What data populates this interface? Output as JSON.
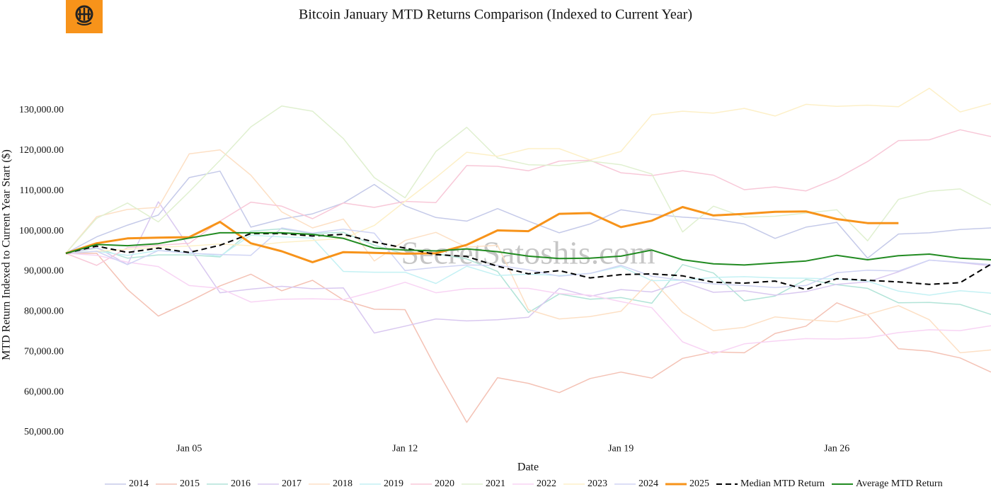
{
  "chart_data": {
    "type": "line",
    "title": "Bitcoin January MTD Returns Comparison (Indexed to Current Year)",
    "watermark": "SecretSatoshis.com",
    "x_label": "Date",
    "y_label": "MTD Return Indexed to Current Year Start ($)",
    "x": [
      1,
      2,
      3,
      4,
      5,
      6,
      7,
      8,
      9,
      10,
      11,
      12,
      13,
      14,
      15,
      16,
      17,
      18,
      19,
      20,
      21,
      22,
      23,
      24,
      25,
      26,
      27,
      28,
      29,
      30,
      31
    ],
    "xlim": [
      1,
      31
    ],
    "xticks": [
      {
        "value": 5,
        "label": "Jan 05"
      },
      {
        "value": 12,
        "label": "Jan 12"
      },
      {
        "value": 19,
        "label": "Jan 19"
      },
      {
        "value": 26,
        "label": "Jan 26"
      }
    ],
    "ylim": [
      48500,
      141000
    ],
    "yticks": [
      {
        "value": 50000,
        "label": "50,000.00"
      },
      {
        "value": 60000,
        "label": "60,000.00"
      },
      {
        "value": 70000,
        "label": "70,000.00"
      },
      {
        "value": 80000,
        "label": "80,000.00"
      },
      {
        "value": 90000,
        "label": "90,000.00"
      },
      {
        "value": 100000,
        "label": "100,000.00"
      },
      {
        "value": 110000,
        "label": "110,000.00"
      },
      {
        "value": 120000,
        "label": "120,000.00"
      },
      {
        "value": 130000,
        "label": "130,000.00"
      }
    ],
    "grid": false,
    "legend": "bottom",
    "series": [
      {
        "name": "2014",
        "color": "#c5cae9",
        "line_width": 1.5,
        "values": [
          94500,
          98600,
          101500,
          104000,
          113300,
          114900,
          101000,
          103000,
          104300,
          107000,
          111600,
          106300,
          103400,
          102500,
          105600,
          102500,
          99600,
          101800,
          105300,
          104200,
          103500,
          103000,
          101800,
          98200,
          101000,
          102200,
          93300,
          99300,
          99600,
          100400,
          100800
        ]
      },
      {
        "name": "2015",
        "color": "#f4c2b5",
        "line_width": 1.5,
        "values": [
          94500,
          94500,
          85500,
          78900,
          82500,
          86400,
          89300,
          85200,
          87800,
          82900,
          80600,
          80500,
          66000,
          52500,
          63600,
          62200,
          59900,
          63400,
          65000,
          63500,
          68400,
          70000,
          69800,
          74600,
          76400,
          82200,
          79200,
          70800,
          70200,
          68500,
          65000
        ]
      },
      {
        "name": "2016",
        "color": "#b2e4d8",
        "line_width": 1.5,
        "values": [
          94500,
          95800,
          93300,
          94100,
          94100,
          93600,
          100000,
          100600,
          99400,
          99700,
          96500,
          94300,
          94400,
          93100,
          90000,
          79800,
          84400,
          83100,
          83500,
          82100,
          91700,
          89600,
          82700,
          83900,
          88000,
          86700,
          85800,
          82200,
          82300,
          81800,
          79300
        ]
      },
      {
        "name": "2017",
        "color": "#d9c8f0",
        "line_width": 1.5,
        "values": [
          94500,
          96000,
          91700,
          107300,
          96000,
          84700,
          85600,
          86300,
          85700,
          85900,
          74700,
          76400,
          78200,
          77700,
          78000,
          78600,
          85800,
          83800,
          85500,
          84900,
          87400,
          84800,
          85200,
          84100,
          85000,
          86800,
          87400,
          89900,
          92800,
          92200,
          91400
        ]
      },
      {
        "name": "2018",
        "color": "#fde0c5",
        "line_width": 1.5,
        "values": [
          94500,
          103600,
          105400,
          105900,
          119200,
          120200,
          113900,
          104800,
          100800,
          103000,
          92600,
          97700,
          99700,
          96000,
          96500,
          80500,
          78200,
          78800,
          80100,
          88000,
          79800,
          75300,
          76100,
          78700,
          78000,
          77500,
          79300,
          81500,
          78000,
          69800,
          70500
        ]
      },
      {
        "name": "2019",
        "color": "#c4f1f4",
        "line_width": 1.5,
        "values": [
          94500,
          95000,
          94000,
          95200,
          94700,
          93800,
          99000,
          98600,
          98300,
          90000,
          89800,
          89800,
          87000,
          91300,
          89000,
          89300,
          89000,
          89500,
          91200,
          87700,
          87800,
          88500,
          88700,
          88400,
          88300,
          88100,
          87600,
          85100,
          84100,
          85200,
          84600
        ]
      },
      {
        "name": "2020",
        "color": "#f8c8d8",
        "line_width": 1.5,
        "values": [
          94500,
          91500,
          95900,
          96500,
          97000,
          102500,
          107200,
          106200,
          103100,
          107000,
          105900,
          107400,
          107100,
          116300,
          116100,
          115000,
          117400,
          117600,
          114500,
          113800,
          115000,
          113900,
          110300,
          111000,
          110000,
          113100,
          117300,
          122500,
          122700,
          125200,
          123500
        ]
      },
      {
        "name": "2021",
        "color": "#e0f0d0",
        "line_width": 1.5,
        "values": [
          94500,
          103200,
          107000,
          102300,
          109800,
          117600,
          125900,
          131100,
          129800,
          123000,
          113300,
          108300,
          119800,
          125800,
          118200,
          116500,
          116300,
          117400,
          116500,
          114200,
          99800,
          106200,
          103500,
          103700,
          104500,
          105300,
          97600,
          107900,
          109900,
          110500,
          106500
        ]
      },
      {
        "name": "2022",
        "color": "#f8d4f4",
        "line_width": 1.5,
        "values": [
          94500,
          94000,
          92300,
          91200,
          86500,
          85800,
          82400,
          83100,
          83200,
          83000,
          85000,
          87300,
          84700,
          85700,
          85800,
          85800,
          84500,
          84100,
          82500,
          81000,
          72500,
          69500,
          72000,
          72700,
          73300,
          73200,
          73500,
          74800,
          75500,
          75300,
          76500
        ]
      },
      {
        "name": "2023",
        "color": "#fdf0c8",
        "line_width": 1.5,
        "values": [
          94500,
          95000,
          95500,
          96000,
          96300,
          96800,
          96400,
          97200,
          97700,
          98200,
          101400,
          107400,
          113300,
          119600,
          118600,
          120500,
          120500,
          117700,
          119800,
          128900,
          129800,
          129300,
          130500,
          128600,
          131500,
          131000,
          131300,
          130900,
          135500,
          129600,
          131700
        ]
      },
      {
        "name": "2024",
        "color": "#d0d4f4",
        "line_width": 1.5,
        "values": [
          94500,
          95000,
          91700,
          95200,
          94500,
          94200,
          94000,
          100800,
          99500,
          100500,
          99500,
          90200,
          91000,
          91600,
          91500,
          90400,
          88800,
          89500,
          91500,
          88800,
          87800,
          86900,
          86500,
          86000,
          86500,
          89700,
          90300,
          90100,
          92800,
          92300,
          91700
        ]
      },
      {
        "name": "2025",
        "color": "#f7931a",
        "line_width": 3,
        "values": [
          94500,
          97000,
          98200,
          98400,
          98500,
          102300,
          97000,
          95000,
          92300,
          94800,
          94600,
          94400,
          94500,
          96600,
          100200,
          100000,
          104300,
          104500,
          101000,
          102600,
          106000,
          103900,
          104300,
          104800,
          104900,
          103000,
          102000,
          102000,
          null,
          null,
          null
        ]
      },
      {
        "name": "Median MTD Return",
        "color": "#000000",
        "line_width": 2,
        "dash": "dash",
        "values": [
          94500,
          96300,
          94700,
          95800,
          94700,
          96500,
          99400,
          99400,
          98800,
          99200,
          97300,
          95800,
          94200,
          93700,
          91300,
          89400,
          90200,
          88400,
          89200,
          89400,
          88900,
          87300,
          87100,
          87600,
          85500,
          88200,
          87800,
          87400,
          86800,
          87200,
          91800
        ]
      },
      {
        "name": "Average MTD Return",
        "color": "#228b22",
        "line_width": 2,
        "values": [
          94500,
          96700,
          96400,
          96900,
          98300,
          99600,
          99600,
          99600,
          99200,
          98200,
          95800,
          95300,
          95100,
          95600,
          94900,
          93800,
          93200,
          93300,
          93800,
          95300,
          92900,
          91900,
          91600,
          92100,
          92600,
          94000,
          92900,
          93900,
          94300,
          93300,
          92900
        ]
      }
    ]
  }
}
